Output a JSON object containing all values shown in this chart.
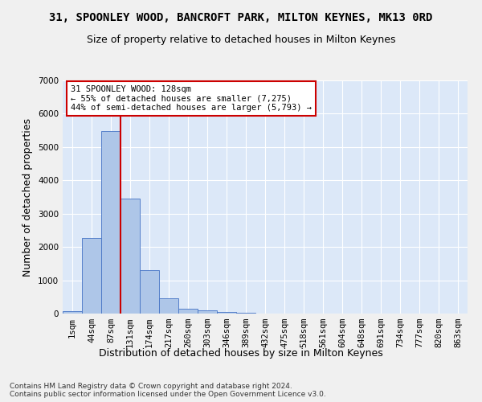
{
  "title": "31, SPOONLEY WOOD, BANCROFT PARK, MILTON KEYNES, MK13 0RD",
  "subtitle": "Size of property relative to detached houses in Milton Keynes",
  "xlabel": "Distribution of detached houses by size in Milton Keynes",
  "ylabel": "Number of detached properties",
  "footer_line1": "Contains HM Land Registry data © Crown copyright and database right 2024.",
  "footer_line2": "Contains public sector information licensed under the Open Government Licence v3.0.",
  "bar_labels": [
    "1sqm",
    "44sqm",
    "87sqm",
    "131sqm",
    "174sqm",
    "217sqm",
    "260sqm",
    "303sqm",
    "346sqm",
    "389sqm",
    "432sqm",
    "475sqm",
    "518sqm",
    "561sqm",
    "604sqm",
    "648sqm",
    "691sqm",
    "734sqm",
    "777sqm",
    "820sqm",
    "863sqm"
  ],
  "bar_values": [
    80,
    2280,
    5480,
    3440,
    1300,
    470,
    155,
    85,
    50,
    30,
    0,
    0,
    0,
    0,
    0,
    0,
    0,
    0,
    0,
    0,
    0
  ],
  "bar_color": "#aec6e8",
  "bar_edge_color": "#4472c4",
  "background_color": "#dce8f8",
  "grid_color": "#ffffff",
  "vline_color": "#cc0000",
  "vline_x_index": 2.5,
  "ylim": [
    0,
    7000
  ],
  "annotation_text": "31 SPOONLEY WOOD: 128sqm\n← 55% of detached houses are smaller (7,275)\n44% of semi-detached houses are larger (5,793) →",
  "annotation_box_color": "#ffffff",
  "annotation_box_edge": "#cc0000",
  "title_fontsize": 10,
  "subtitle_fontsize": 9,
  "axis_label_fontsize": 9,
  "tick_fontsize": 7.5,
  "footer_fontsize": 6.5
}
